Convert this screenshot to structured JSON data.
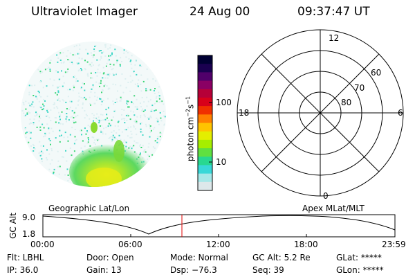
{
  "header": {
    "instrument": "Ultraviolet Imager",
    "date": "24 Aug 00",
    "time": "09:37:47 UT"
  },
  "colorbar": {
    "unit_label": "photon cm",
    "unit_sup1": "−2",
    "unit_mid": "s",
    "unit_sup2": "−1",
    "ticks": [
      "100",
      "10"
    ],
    "colors": [
      "#000033",
      "#1a0050",
      "#50006a",
      "#8a0064",
      "#b60038",
      "#d8001a",
      "#f03000",
      "#ff8000",
      "#ffc400",
      "#e4ee00",
      "#a6ee00",
      "#60e040",
      "#28d890",
      "#38d8d8",
      "#a6e8e8",
      "#dde8ea"
    ]
  },
  "image_panel": {
    "label": "Geographic Lat/Lon",
    "colors": {
      "background": "#dceff0",
      "speckle_cyan": "#3fd6c6",
      "speckle_green": "#39d674",
      "aurora_green": "#70dc30",
      "aurora_yellow": "#e0ea10"
    }
  },
  "polar_grid": {
    "label": "Apex MLat/MLT",
    "mlt_labels": [
      "12",
      "18",
      "6",
      "0"
    ],
    "lat_labels": [
      "60",
      "70",
      "80"
    ]
  },
  "timeline": {
    "ylabel": "GC Alt",
    "y_labels": [
      "9.0",
      "1.8"
    ],
    "x_labels": [
      "00:00",
      "06:00",
      "12:00",
      "18:00",
      "23:59"
    ],
    "marker_color": "#e00000"
  },
  "footer": {
    "flt": "Flt: LBHL",
    "ip": "IP: 36.0",
    "door": "Door: Open",
    "gain": "Gain: 13",
    "mode": "Mode: Normal",
    "dsp": "Dsp:  −76.3",
    "gcalt": "GC Alt: 5.2 Re",
    "seq": "Seq: 39",
    "glat": "GLat: *****",
    "glon": "GLon: *****"
  }
}
